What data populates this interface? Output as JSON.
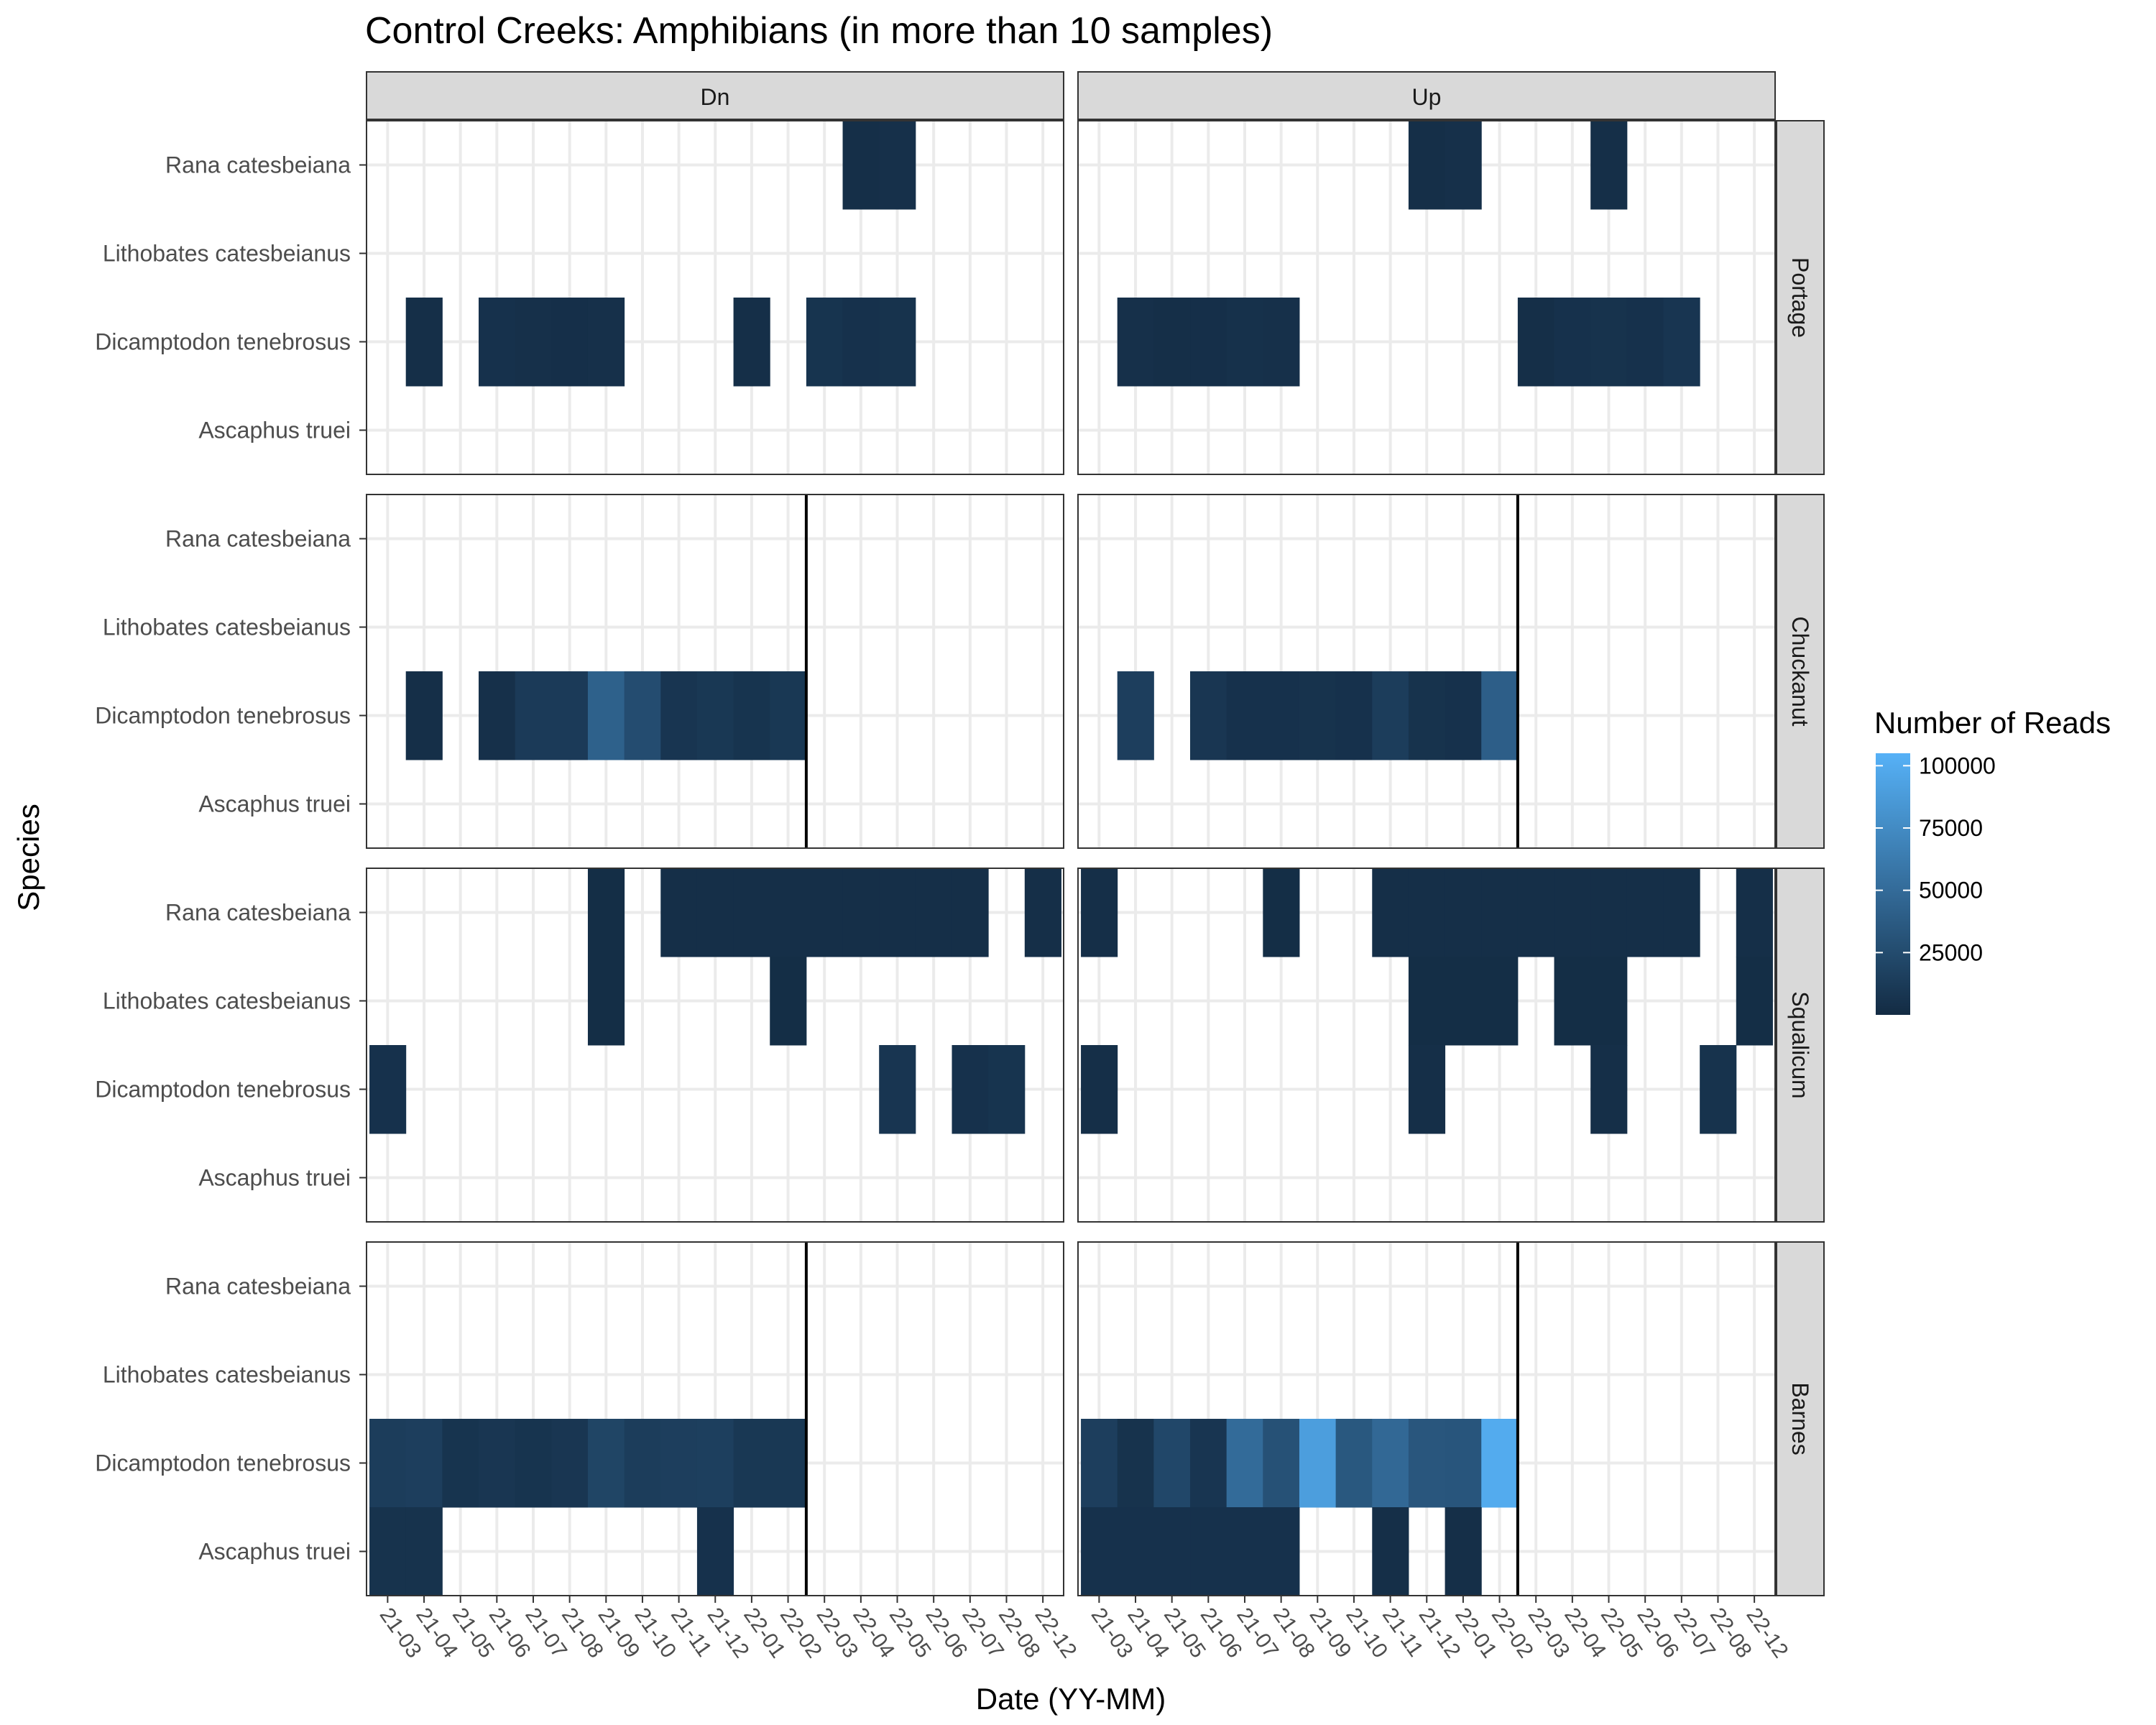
{
  "chart_data": {
    "type": "heatmap",
    "title": "Control Creeks: Amphibians (in more than 10 samples)",
    "xlabel": "Date (YY-MM)",
    "ylabel": "Species",
    "columns": [
      "Dn",
      "Up"
    ],
    "rows": [
      "Portage",
      "Chuckanut",
      "Squalicum",
      "Barnes"
    ],
    "species": [
      "Rana catesbeiana",
      "Lithobates catesbeianus",
      "Dicamptodon tenebrosus",
      "Ascaphus truei"
    ],
    "dates": [
      "21-03",
      "21-04",
      "21-05",
      "21-06",
      "21-07",
      "21-08",
      "21-09",
      "21-10",
      "21-11",
      "21-12",
      "22-01",
      "22-02",
      "22-03",
      "22-04",
      "22-05",
      "22-06",
      "22-07",
      "22-08",
      "22-12"
    ],
    "legend": {
      "title": "Number of Reads",
      "ticks": [
        25000,
        50000,
        75000,
        100000
      ],
      "min": 0,
      "max": 105000,
      "low_color": "#132b43",
      "high_color": "#56b1f7"
    },
    "grid": true,
    "vline_after": "22-02",
    "vline_rows": [
      "Chuckanut",
      "Barnes"
    ],
    "panels": [
      {
        "row": "Portage",
        "column": "Dn",
        "cells": [
          {
            "date": "22-04",
            "species": "Rana catesbeiana",
            "value": 3000
          },
          {
            "date": "22-05",
            "species": "Rana catesbeiana",
            "value": 4000
          },
          {
            "date": "21-04",
            "species": "Dicamptodon tenebrosus",
            "value": 3000
          },
          {
            "date": "21-06",
            "species": "Dicamptodon tenebrosus",
            "value": 5000
          },
          {
            "date": "21-07",
            "species": "Dicamptodon tenebrosus",
            "value": 4000
          },
          {
            "date": "21-08",
            "species": "Dicamptodon tenebrosus",
            "value": 3500
          },
          {
            "date": "21-09",
            "species": "Dicamptodon tenebrosus",
            "value": 4000
          },
          {
            "date": "22-01",
            "species": "Dicamptodon tenebrosus",
            "value": 3000
          },
          {
            "date": "22-03",
            "species": "Dicamptodon tenebrosus",
            "value": 7000
          },
          {
            "date": "22-04",
            "species": "Dicamptodon tenebrosus",
            "value": 5000
          },
          {
            "date": "22-05",
            "species": "Dicamptodon tenebrosus",
            "value": 6000
          }
        ]
      },
      {
        "row": "Portage",
        "column": "Up",
        "cells": [
          {
            "date": "21-12",
            "species": "Rana catesbeiana",
            "value": 3000
          },
          {
            "date": "22-01",
            "species": "Rana catesbeiana",
            "value": 4000
          },
          {
            "date": "22-05",
            "species": "Rana catesbeiana",
            "value": 3000
          },
          {
            "date": "21-04",
            "species": "Dicamptodon tenebrosus",
            "value": 4000
          },
          {
            "date": "21-05",
            "species": "Dicamptodon tenebrosus",
            "value": 3000
          },
          {
            "date": "21-06",
            "species": "Dicamptodon tenebrosus",
            "value": 3500
          },
          {
            "date": "21-07",
            "species": "Dicamptodon tenebrosus",
            "value": 4500
          },
          {
            "date": "21-08",
            "species": "Dicamptodon tenebrosus",
            "value": 4000
          },
          {
            "date": "22-03",
            "species": "Dicamptodon tenebrosus",
            "value": 3000
          },
          {
            "date": "22-04",
            "species": "Dicamptodon tenebrosus",
            "value": 5000
          },
          {
            "date": "22-05",
            "species": "Dicamptodon tenebrosus",
            "value": 6000
          },
          {
            "date": "22-06",
            "species": "Dicamptodon tenebrosus",
            "value": 5000
          },
          {
            "date": "22-07",
            "species": "Dicamptodon tenebrosus",
            "value": 8000
          }
        ]
      },
      {
        "row": "Chuckanut",
        "column": "Dn",
        "cells": [
          {
            "date": "21-04",
            "species": "Dicamptodon tenebrosus",
            "value": 3000
          },
          {
            "date": "21-06",
            "species": "Dicamptodon tenebrosus",
            "value": 4000
          },
          {
            "date": "21-07",
            "species": "Dicamptodon tenebrosus",
            "value": 12000
          },
          {
            "date": "21-08",
            "species": "Dicamptodon tenebrosus",
            "value": 12000
          },
          {
            "date": "21-09",
            "species": "Dicamptodon tenebrosus",
            "value": 42000
          },
          {
            "date": "21-10",
            "species": "Dicamptodon tenebrosus",
            "value": 26000
          },
          {
            "date": "21-11",
            "species": "Dicamptodon tenebrosus",
            "value": 8000
          },
          {
            "date": "21-12",
            "species": "Dicamptodon tenebrosus",
            "value": 10000
          },
          {
            "date": "22-01",
            "species": "Dicamptodon tenebrosus",
            "value": 7000
          },
          {
            "date": "22-02",
            "species": "Dicamptodon tenebrosus",
            "value": 10000
          }
        ]
      },
      {
        "row": "Chuckanut",
        "column": "Up",
        "cells": [
          {
            "date": "21-04",
            "species": "Dicamptodon tenebrosus",
            "value": 15000
          },
          {
            "date": "21-06",
            "species": "Dicamptodon tenebrosus",
            "value": 9000
          },
          {
            "date": "21-07",
            "species": "Dicamptodon tenebrosus",
            "value": 5000
          },
          {
            "date": "21-08",
            "species": "Dicamptodon tenebrosus",
            "value": 5000
          },
          {
            "date": "21-09",
            "species": "Dicamptodon tenebrosus",
            "value": 6000
          },
          {
            "date": "21-10",
            "species": "Dicamptodon tenebrosus",
            "value": 5000
          },
          {
            "date": "21-11",
            "species": "Dicamptodon tenebrosus",
            "value": 14000
          },
          {
            "date": "21-12",
            "species": "Dicamptodon tenebrosus",
            "value": 6000
          },
          {
            "date": "22-01",
            "species": "Dicamptodon tenebrosus",
            "value": 5000
          },
          {
            "date": "22-02",
            "species": "Dicamptodon tenebrosus",
            "value": 40000
          }
        ]
      },
      {
        "row": "Squalicum",
        "column": "Dn",
        "cells": [
          {
            "date": "21-09",
            "species": "Rana catesbeiana",
            "value": 2000
          },
          {
            "date": "21-11",
            "species": "Rana catesbeiana",
            "value": 3000
          },
          {
            "date": "21-12",
            "species": "Rana catesbeiana",
            "value": 3000
          },
          {
            "date": "22-01",
            "species": "Rana catesbeiana",
            "value": 3000
          },
          {
            "date": "22-02",
            "species": "Rana catesbeiana",
            "value": 3000
          },
          {
            "date": "22-03",
            "species": "Rana catesbeiana",
            "value": 3000
          },
          {
            "date": "22-04",
            "species": "Rana catesbeiana",
            "value": 3000
          },
          {
            "date": "22-05",
            "species": "Rana catesbeiana",
            "value": 3000
          },
          {
            "date": "22-06",
            "species": "Rana catesbeiana",
            "value": 3000
          },
          {
            "date": "22-07",
            "species": "Rana catesbeiana",
            "value": 3000
          },
          {
            "date": "22-12",
            "species": "Rana catesbeiana",
            "value": 3000
          },
          {
            "date": "21-09",
            "species": "Lithobates catesbeianus",
            "value": 2000
          },
          {
            "date": "22-02",
            "species": "Lithobates catesbeianus",
            "value": 2000
          },
          {
            "date": "21-03",
            "species": "Dicamptodon tenebrosus",
            "value": 5000
          },
          {
            "date": "22-05",
            "species": "Dicamptodon tenebrosus",
            "value": 8000
          },
          {
            "date": "22-07",
            "species": "Dicamptodon tenebrosus",
            "value": 5000
          },
          {
            "date": "22-08",
            "species": "Dicamptodon tenebrosus",
            "value": 7000
          }
        ]
      },
      {
        "row": "Squalicum",
        "column": "Up",
        "cells": [
          {
            "date": "21-03",
            "species": "Rana catesbeiana",
            "value": 3000
          },
          {
            "date": "21-08",
            "species": "Rana catesbeiana",
            "value": 2000
          },
          {
            "date": "21-11",
            "species": "Rana catesbeiana",
            "value": 3000
          },
          {
            "date": "21-12",
            "species": "Rana catesbeiana",
            "value": 3000
          },
          {
            "date": "22-01",
            "species": "Rana catesbeiana",
            "value": 3000
          },
          {
            "date": "22-02",
            "species": "Rana catesbeiana",
            "value": 3000
          },
          {
            "date": "22-03",
            "species": "Rana catesbeiana",
            "value": 3000
          },
          {
            "date": "22-04",
            "species": "Rana catesbeiana",
            "value": 3000
          },
          {
            "date": "22-05",
            "species": "Rana catesbeiana",
            "value": 3000
          },
          {
            "date": "22-06",
            "species": "Rana catesbeiana",
            "value": 3000
          },
          {
            "date": "22-07",
            "species": "Rana catesbeiana",
            "value": 3000
          },
          {
            "date": "22-12",
            "species": "Rana catesbeiana",
            "value": 3000
          },
          {
            "date": "21-12",
            "species": "Lithobates catesbeianus",
            "value": 2000
          },
          {
            "date": "22-01",
            "species": "Lithobates catesbeianus",
            "value": 2000
          },
          {
            "date": "22-02",
            "species": "Lithobates catesbeianus",
            "value": 2000
          },
          {
            "date": "22-04",
            "species": "Lithobates catesbeianus",
            "value": 2000
          },
          {
            "date": "22-05",
            "species": "Lithobates catesbeianus",
            "value": 2000
          },
          {
            "date": "22-12",
            "species": "Lithobates catesbeianus",
            "value": 2000
          },
          {
            "date": "21-03",
            "species": "Dicamptodon tenebrosus",
            "value": 3000
          },
          {
            "date": "21-12",
            "species": "Dicamptodon tenebrosus",
            "value": 3000
          },
          {
            "date": "22-05",
            "species": "Dicamptodon tenebrosus",
            "value": 3000
          },
          {
            "date": "22-08",
            "species": "Dicamptodon tenebrosus",
            "value": 6000
          }
        ]
      },
      {
        "row": "Barnes",
        "column": "Dn",
        "cells": [
          {
            "date": "21-03",
            "species": "Dicamptodon tenebrosus",
            "value": 14000
          },
          {
            "date": "21-04",
            "species": "Dicamptodon tenebrosus",
            "value": 15000
          },
          {
            "date": "21-05",
            "species": "Dicamptodon tenebrosus",
            "value": 7000
          },
          {
            "date": "21-06",
            "species": "Dicamptodon tenebrosus",
            "value": 9000
          },
          {
            "date": "21-07",
            "species": "Dicamptodon tenebrosus",
            "value": 7000
          },
          {
            "date": "21-08",
            "species": "Dicamptodon tenebrosus",
            "value": 9000
          },
          {
            "date": "21-09",
            "species": "Dicamptodon tenebrosus",
            "value": 20000
          },
          {
            "date": "21-10",
            "species": "Dicamptodon tenebrosus",
            "value": 14000
          },
          {
            "date": "21-11",
            "species": "Dicamptodon tenebrosus",
            "value": 15000
          },
          {
            "date": "21-12",
            "species": "Dicamptodon tenebrosus",
            "value": 16000
          },
          {
            "date": "22-01",
            "species": "Dicamptodon tenebrosus",
            "value": 10000
          },
          {
            "date": "22-02",
            "species": "Dicamptodon tenebrosus",
            "value": 10000
          },
          {
            "date": "21-03",
            "species": "Ascaphus truei",
            "value": 6000
          },
          {
            "date": "21-04",
            "species": "Ascaphus truei",
            "value": 6000
          },
          {
            "date": "21-12",
            "species": "Ascaphus truei",
            "value": 5000
          }
        ]
      },
      {
        "row": "Barnes",
        "column": "Up",
        "cells": [
          {
            "date": "21-03",
            "species": "Dicamptodon tenebrosus",
            "value": 15000
          },
          {
            "date": "21-04",
            "species": "Dicamptodon tenebrosus",
            "value": 6000
          },
          {
            "date": "21-05",
            "species": "Dicamptodon tenebrosus",
            "value": 22000
          },
          {
            "date": "21-06",
            "species": "Dicamptodon tenebrosus",
            "value": 8000
          },
          {
            "date": "21-07",
            "species": "Dicamptodon tenebrosus",
            "value": 50000
          },
          {
            "date": "21-08",
            "species": "Dicamptodon tenebrosus",
            "value": 30000
          },
          {
            "date": "21-09",
            "species": "Dicamptodon tenebrosus",
            "value": 90000
          },
          {
            "date": "21-10",
            "species": "Dicamptodon tenebrosus",
            "value": 35000
          },
          {
            "date": "21-11",
            "species": "Dicamptodon tenebrosus",
            "value": 48000
          },
          {
            "date": "21-12",
            "species": "Dicamptodon tenebrosus",
            "value": 34000
          },
          {
            "date": "22-01",
            "species": "Dicamptodon tenebrosus",
            "value": 33000
          },
          {
            "date": "22-02",
            "species": "Dicamptodon tenebrosus",
            "value": 100000
          },
          {
            "date": "21-03",
            "species": "Ascaphus truei",
            "value": 5000
          },
          {
            "date": "21-04",
            "species": "Ascaphus truei",
            "value": 5000
          },
          {
            "date": "21-05",
            "species": "Ascaphus truei",
            "value": 5000
          },
          {
            "date": "21-06",
            "species": "Ascaphus truei",
            "value": 5000
          },
          {
            "date": "21-07",
            "species": "Ascaphus truei",
            "value": 5000
          },
          {
            "date": "21-08",
            "species": "Ascaphus truei",
            "value": 5000
          },
          {
            "date": "21-11",
            "species": "Ascaphus truei",
            "value": 3000
          },
          {
            "date": "22-01",
            "species": "Ascaphus truei",
            "value": 3000
          }
        ]
      }
    ]
  }
}
